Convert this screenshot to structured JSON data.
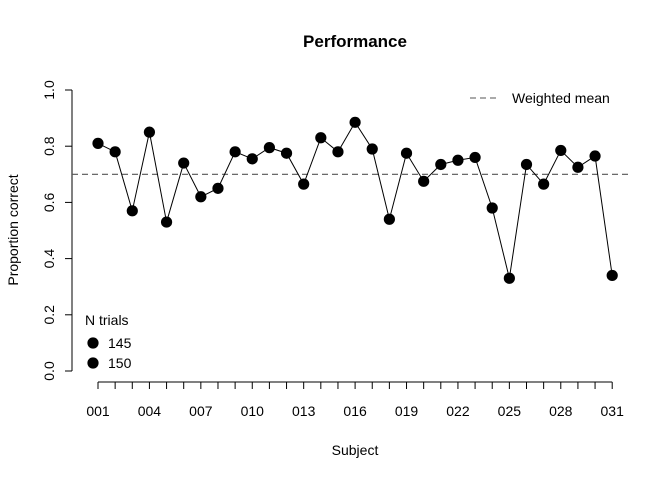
{
  "chart_data": {
    "type": "line",
    "title": "Performance",
    "xlabel": "Subject",
    "ylabel": "Proportion correct",
    "ylim": [
      0,
      1
    ],
    "yticks": [
      "0.0",
      "0.2",
      "0.4",
      "0.6",
      "0.8",
      "1.0"
    ],
    "categories": [
      "001",
      "002",
      "003",
      "004",
      "005",
      "006",
      "007",
      "008",
      "009",
      "010",
      "011",
      "012",
      "013",
      "014",
      "015",
      "016",
      "017",
      "018",
      "019",
      "020",
      "021",
      "022",
      "023",
      "024",
      "025",
      "026",
      "027",
      "028",
      "029",
      "030",
      "031"
    ],
    "x_tick_labels_shown": [
      "001",
      "004",
      "007",
      "010",
      "013",
      "016",
      "019",
      "022",
      "025",
      "028",
      "031"
    ],
    "series": [
      {
        "values": [
          0.81,
          0.78,
          0.57,
          0.85,
          0.53,
          0.74,
          0.62,
          0.65,
          0.78,
          0.755,
          0.795,
          0.775,
          0.665,
          0.83,
          0.78,
          0.885,
          0.79,
          0.54,
          0.775,
          0.675,
          0.735,
          0.75,
          0.76,
          0.58,
          0.33,
          0.735,
          0.665,
          0.785,
          0.725,
          0.765,
          0.34
        ],
        "color": "#000000",
        "marker": "filled-circle"
      }
    ],
    "reference_line": {
      "label": "Weighted mean",
      "value": 0.7,
      "style": "dashed",
      "color": "#555555"
    },
    "legends": {
      "reference": {
        "placement": "top-right",
        "label": "Weighted mean"
      },
      "size": {
        "placement": "bottom-left",
        "title": "N trials",
        "entries": [
          "145",
          "150"
        ]
      }
    },
    "grid": false
  }
}
